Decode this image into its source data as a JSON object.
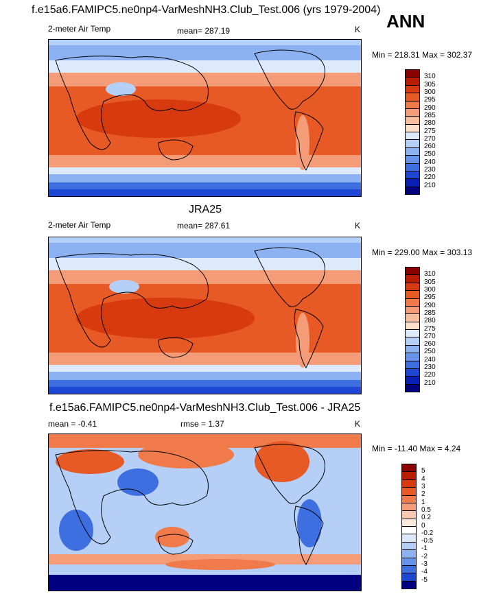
{
  "season": "ANN",
  "units": "K",
  "panels": [
    {
      "title": "f.e15a6.FAMIPC5.ne0np4-VarMeshNH3.Club_Test.006 (yrs 1979-2004)",
      "left_label": "2-meter Air Temp",
      "center_label": "mean= 287.19",
      "right_label": "K",
      "minmax": "Min = 218.31 Max = 302.37",
      "colorbar": [
        "310",
        "305",
        "300",
        "295",
        "290",
        "285",
        "280",
        "275",
        "270",
        "260",
        "250",
        "240",
        "230",
        "220",
        "210"
      ]
    },
    {
      "title": "JRA25",
      "left_label": "2-meter Air Temp",
      "center_label": "mean= 287.61",
      "right_label": "K",
      "minmax": "Min = 229.00 Max = 303.13",
      "colorbar": [
        "310",
        "305",
        "300",
        "295",
        "290",
        "285",
        "280",
        "275",
        "270",
        "260",
        "250",
        "240",
        "230",
        "220",
        "210"
      ]
    },
    {
      "title": "f.e15a6.FAMIPC5.ne0np4-VarMeshNH3.Club_Test.006 - JRA25",
      "left_label": "mean =  -0.41",
      "center_label": "rmse =   1.37",
      "right_label": "K",
      "minmax": "Min = -11.40 Max =   4.24",
      "colorbar": [
        "5",
        "4",
        "3",
        "2",
        "1",
        "0.5",
        "0.2",
        "0",
        "-0.2",
        "-0.5",
        "-1",
        "-2",
        "-3",
        "-4",
        "-5"
      ]
    }
  ],
  "colors": {
    "abs_scale": [
      "#8b0000",
      "#b81d00",
      "#d83a10",
      "#e85a25",
      "#f07a4a",
      "#f49c78",
      "#f9bea0",
      "#fde0cc",
      "#dceafb",
      "#b5d0f8",
      "#8cb2f2",
      "#6692ea",
      "#3e6fe0",
      "#1d47d2",
      "#0a1fb5",
      "#000080"
    ],
    "diff_scale": [
      "#8b0000",
      "#b81d00",
      "#d83a10",
      "#e85a25",
      "#f07a4a",
      "#f49c78",
      "#f9c6b0",
      "#fde8dc",
      "#ffffff",
      "#dbe7fb",
      "#b5cff7",
      "#8cb2f2",
      "#6692ea",
      "#3e6fe0",
      "#1d47d2",
      "#000080"
    ]
  }
}
